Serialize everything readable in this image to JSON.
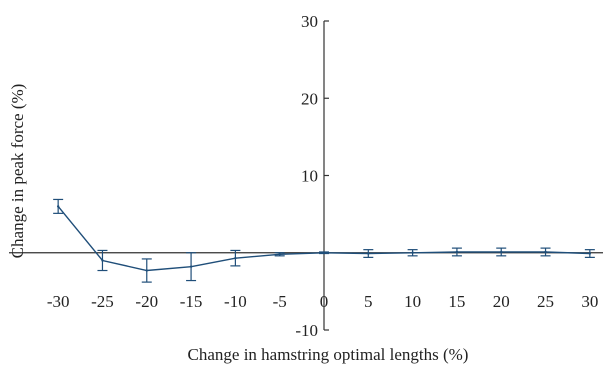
{
  "chart_data": {
    "type": "line",
    "xlabel": "Change in hamstring optimal lengths (%)",
    "ylabel": "Change in peak force (%)",
    "x": [
      -30,
      -25,
      -20,
      -15,
      -10,
      -5,
      0,
      5,
      10,
      15,
      20,
      25,
      30
    ],
    "xticks": [
      -30,
      -25,
      -20,
      -15,
      -10,
      -5,
      0,
      5,
      10,
      15,
      20,
      25,
      30
    ],
    "yticks": [
      -10,
      10,
      20,
      30
    ],
    "xlim": [
      -32.5,
      32.5
    ],
    "ylim": [
      -10,
      30
    ],
    "series": [
      {
        "values": [
          6.0,
          -1.0,
          -2.3,
          -1.8,
          -0.7,
          -0.2,
          0.0,
          -0.1,
          0.0,
          0.1,
          0.1,
          0.1,
          -0.1
        ],
        "error": [
          0.9,
          1.3,
          1.5,
          1.8,
          1.0,
          0.2,
          0.1,
          0.5,
          0.4,
          0.5,
          0.5,
          0.5,
          0.5
        ]
      }
    ],
    "line_color": "#1f4e79",
    "axis_color": "#333333",
    "grid": false
  }
}
